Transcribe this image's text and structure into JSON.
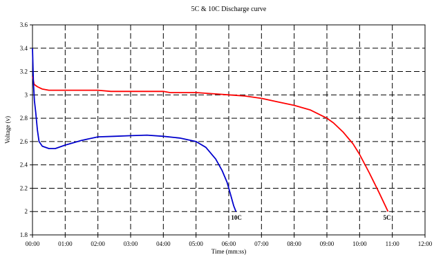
{
  "chart_data": {
    "type": "line",
    "title": "5C & 10C Discharge curve",
    "xlabel": "Time (mm:ss)",
    "ylabel": "Voltage (v)",
    "xlim": [
      0,
      12
    ],
    "ylim": [
      1.8,
      3.6
    ],
    "x_ticks": [
      0,
      1,
      2,
      3,
      4,
      5,
      6,
      7,
      8,
      9,
      10,
      11,
      12
    ],
    "x_tick_labels": [
      "00:00",
      "01:00",
      "02:00",
      "03:00",
      "04:00",
      "05:00",
      "06:00",
      "07:00",
      "08:00",
      "09:00",
      "10:00",
      "11:00",
      "12:00"
    ],
    "y_ticks": [
      1.8,
      2.0,
      2.2,
      2.4,
      2.6,
      2.8,
      3.0,
      3.2,
      3.4,
      3.6
    ],
    "y_tick_labels": [
      "1.8",
      "2",
      "2.2",
      "2.4",
      "2.6",
      "2.8",
      "3",
      "3.2",
      "3.4",
      "3.6"
    ],
    "grid": true,
    "series": [
      {
        "name": "5C",
        "color": "#ff0000",
        "x": [
          0,
          0.05,
          0.15,
          0.3,
          0.5,
          1.0,
          2.0,
          2.4,
          3.0,
          4.0,
          4.2,
          5.0,
          5.5,
          6.0,
          6.5,
          7.0,
          7.5,
          8.0,
          8.5,
          9.0,
          9.2,
          9.5,
          9.8,
          10.0,
          10.3,
          10.6,
          10.87
        ],
        "y": [
          3.16,
          3.09,
          3.07,
          3.05,
          3.04,
          3.04,
          3.04,
          3.03,
          3.03,
          3.03,
          3.02,
          3.02,
          3.01,
          3.0,
          2.99,
          2.97,
          2.94,
          2.91,
          2.87,
          2.8,
          2.76,
          2.68,
          2.58,
          2.49,
          2.33,
          2.16,
          2.0
        ]
      },
      {
        "name": "10C",
        "color": "#0000cc",
        "x": [
          0,
          0.03,
          0.06,
          0.1,
          0.15,
          0.2,
          0.3,
          0.5,
          0.7,
          1.0,
          1.5,
          2.0,
          2.5,
          3.0,
          3.5,
          4.0,
          4.5,
          5.0,
          5.3,
          5.6,
          5.8,
          5.95,
          6.05,
          6.15,
          6.22
        ],
        "y": [
          3.4,
          3.1,
          2.95,
          2.85,
          2.7,
          2.6,
          2.56,
          2.54,
          2.54,
          2.57,
          2.61,
          2.64,
          2.645,
          2.65,
          2.655,
          2.645,
          2.63,
          2.6,
          2.55,
          2.45,
          2.35,
          2.25,
          2.15,
          2.05,
          2.0
        ]
      }
    ],
    "annotations": [
      {
        "text": "10C",
        "x": 6.22,
        "y": 2.0
      },
      {
        "text": "5C",
        "x": 10.87,
        "y": 2.0
      }
    ]
  }
}
